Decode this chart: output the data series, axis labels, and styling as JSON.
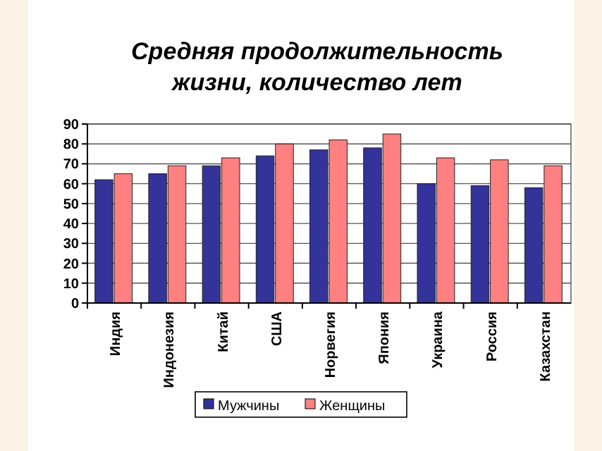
{
  "chart_data": {
    "type": "bar",
    "title": "Средняя продолжительность\nжизни, количество лет",
    "categories": [
      "Индия",
      "Индонезия",
      "Китай",
      "США",
      "Норвегия",
      "Япония",
      "Украина",
      "Россия",
      "Казахстан"
    ],
    "series": [
      {
        "name": "Мужчины",
        "color": "#333399",
        "values": [
          62,
          65,
          69,
          74,
          77,
          78,
          60,
          59,
          58
        ]
      },
      {
        "name": "Женщины",
        "color": "#ff8080",
        "values": [
          65,
          69,
          73,
          80,
          82,
          85,
          73,
          72,
          69
        ]
      }
    ],
    "ylim": [
      0,
      90
    ],
    "yticks": [
      0,
      10,
      20,
      30,
      40,
      50,
      60,
      70,
      80,
      90
    ],
    "grid": "y",
    "legend": "bottom"
  }
}
